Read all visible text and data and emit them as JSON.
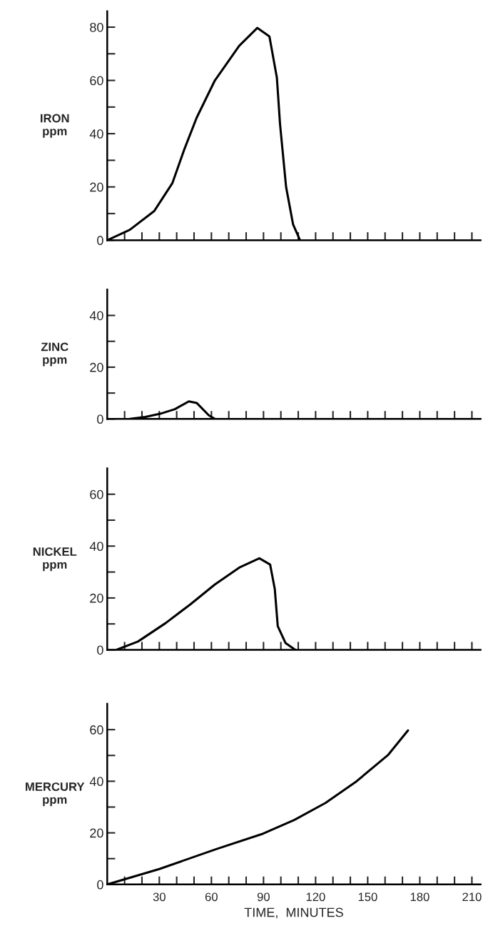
{
  "chart_data": [
    {
      "type": "line",
      "ylabel": "IRON\nppm",
      "tick_labels": "y",
      "xlim": [
        0,
        215
      ],
      "ylim": [
        0,
        86
      ],
      "xticks": [
        {
          "value": 10,
          "label": null
        },
        {
          "value": 20,
          "label": null
        },
        {
          "value": 30,
          "label": null
        },
        {
          "value": 40,
          "label": null
        },
        {
          "value": 50,
          "label": null
        },
        {
          "value": 60,
          "label": null
        },
        {
          "value": 70,
          "label": null
        },
        {
          "value": 80,
          "label": null
        },
        {
          "value": 90,
          "label": null
        },
        {
          "value": 100,
          "label": null
        },
        {
          "value": 110,
          "label": null
        },
        {
          "value": 120,
          "label": null
        },
        {
          "value": 130,
          "label": null
        },
        {
          "value": 140,
          "label": null
        },
        {
          "value": 150,
          "label": null
        },
        {
          "value": 160,
          "label": null
        },
        {
          "value": 170,
          "label": null
        },
        {
          "value": 180,
          "label": null
        },
        {
          "value": 190,
          "label": null
        },
        {
          "value": 200,
          "label": null
        },
        {
          "value": 210,
          "label": null
        }
      ],
      "yticks": [
        0,
        {
          "value": 10,
          "label": null
        },
        20,
        {
          "value": 30,
          "label": null
        },
        40,
        {
          "value": 50,
          "label": null
        },
        60,
        {
          "value": 70,
          "label": null
        },
        80
      ],
      "series": [
        {
          "color": "#000000",
          "x": [
            0,
            13,
            27,
            37.5,
            44.5,
            51.5,
            62,
            76,
            86.4,
            93.4,
            97.7,
            99.5,
            103,
            107,
            111
          ],
          "values": [
            0,
            3.9,
            10.9,
            21.4,
            34.3,
            46,
            60,
            73,
            79.7,
            76.5,
            61,
            43.7,
            20,
            6,
            0
          ]
        }
      ]
    },
    {
      "type": "line",
      "ylabel": "ZINC\nppm",
      "tick_labels": "y",
      "xlim": [
        0,
        215
      ],
      "ylim": [
        0,
        50
      ],
      "xticks": [
        {
          "value": 10,
          "label": null
        },
        {
          "value": 20,
          "label": null
        },
        {
          "value": 30,
          "label": null
        },
        {
          "value": 40,
          "label": null
        },
        {
          "value": 50,
          "label": null
        },
        {
          "value": 60,
          "label": null
        },
        {
          "value": 70,
          "label": null
        },
        {
          "value": 80,
          "label": null
        },
        {
          "value": 90,
          "label": null
        },
        {
          "value": 100,
          "label": null
        },
        {
          "value": 110,
          "label": null
        },
        {
          "value": 120,
          "label": null
        },
        {
          "value": 130,
          "label": null
        },
        {
          "value": 140,
          "label": null
        },
        {
          "value": 150,
          "label": null
        },
        {
          "value": 160,
          "label": null
        },
        {
          "value": 170,
          "label": null
        },
        {
          "value": 180,
          "label": null
        },
        {
          "value": 190,
          "label": null
        },
        {
          "value": 200,
          "label": null
        },
        {
          "value": 210,
          "label": null
        }
      ],
      "yticks": [
        0,
        {
          "value": 10,
          "label": null
        },
        20,
        {
          "value": 30,
          "label": null
        },
        40
      ],
      "series": [
        {
          "color": "#000000",
          "x": [
            13,
            22,
            30.5,
            39,
            47,
            51.5,
            58.5,
            62
          ],
          "values": [
            0,
            0.8,
            2,
            3.8,
            6.8,
            6.2,
            1.4,
            0
          ]
        }
      ]
    },
    {
      "type": "line",
      "ylabel": "NICKEL\nppm",
      "tick_labels": "y",
      "xlim": [
        0,
        215
      ],
      "ylim": [
        0,
        70
      ],
      "xticks": [
        {
          "value": 10,
          "label": null
        },
        {
          "value": 20,
          "label": null
        },
        {
          "value": 30,
          "label": null
        },
        {
          "value": 40,
          "label": null
        },
        {
          "value": 50,
          "label": null
        },
        {
          "value": 60,
          "label": null
        },
        {
          "value": 70,
          "label": null
        },
        {
          "value": 80,
          "label": null
        },
        {
          "value": 90,
          "label": null
        },
        {
          "value": 100,
          "label": null
        },
        {
          "value": 110,
          "label": null
        },
        {
          "value": 120,
          "label": null
        },
        {
          "value": 130,
          "label": null
        },
        {
          "value": 140,
          "label": null
        },
        {
          "value": 150,
          "label": null
        },
        {
          "value": 160,
          "label": null
        },
        {
          "value": 170,
          "label": null
        },
        {
          "value": 180,
          "label": null
        },
        {
          "value": 190,
          "label": null
        },
        {
          "value": 200,
          "label": null
        },
        {
          "value": 210,
          "label": null
        }
      ],
      "yticks": [
        0,
        {
          "value": 10,
          "label": null
        },
        20,
        {
          "value": 30,
          "label": null
        },
        40,
        {
          "value": 50,
          "label": null
        },
        60
      ],
      "series": [
        {
          "color": "#000000",
          "x": [
            5.3,
            17.7,
            33.6,
            47.8,
            62,
            76,
            87.6,
            93.8,
            96.5,
            98.2,
            102.7,
            108.3
          ],
          "values": [
            0,
            3.2,
            10.3,
            17.5,
            25.2,
            31.7,
            35.3,
            32.9,
            23.4,
            9.1,
            2.6,
            0
          ]
        }
      ]
    },
    {
      "type": "line",
      "ylabel": "MERCURY\nppm",
      "xlabel": "TIME,  MINUTES",
      "xlim": [
        0,
        215
      ],
      "ylim": [
        0,
        70
      ],
      "xticks": [
        {
          "value": 10,
          "label": null
        },
        {
          "value": 20,
          "label": null
        },
        30,
        {
          "value": 40,
          "label": null
        },
        {
          "value": 50,
          "label": null
        },
        60,
        {
          "value": 70,
          "label": null
        },
        {
          "value": 80,
          "label": null
        },
        90,
        {
          "value": 100,
          "label": null
        },
        {
          "value": 110,
          "label": null
        },
        120,
        {
          "value": 130,
          "label": null
        },
        {
          "value": 140,
          "label": null
        },
        150,
        {
          "value": 160,
          "label": null
        },
        {
          "value": 170,
          "label": null
        },
        180,
        {
          "value": 190,
          "label": null
        },
        {
          "value": 200,
          "label": null
        },
        210
      ],
      "yticks": [
        0,
        {
          "value": 10,
          "label": null
        },
        20,
        {
          "value": 30,
          "label": null
        },
        40,
        {
          "value": 50,
          "label": null
        },
        60
      ],
      "series": [
        {
          "color": "#000000",
          "x": [
            0,
            30,
            62.8,
            89.8,
            107.7,
            125.7,
            143.6,
            161.6,
            173.2
          ],
          "values": [
            0,
            6,
            13.7,
            19.7,
            25,
            31.6,
            40,
            50.1,
            59.7
          ]
        }
      ]
    }
  ]
}
